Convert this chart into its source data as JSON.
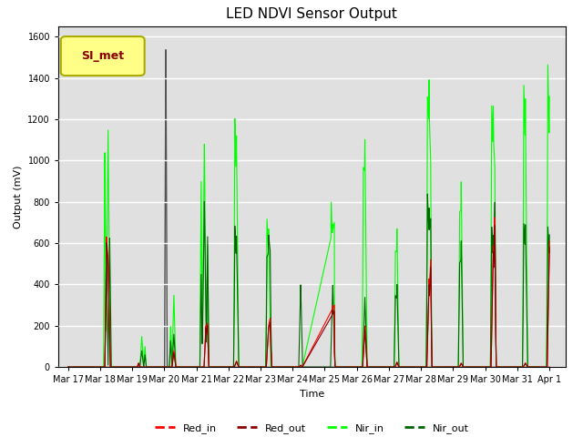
{
  "title": "LED NDVI Sensor Output",
  "xlabel": "Time",
  "ylabel": "Output (mV)",
  "ylim": [
    0,
    1650
  ],
  "yticks": [
    0,
    200,
    400,
    600,
    800,
    1000,
    1200,
    1400,
    1600
  ],
  "legend_label": "SI_met",
  "bg_color": "#e0e0e0",
  "series": {
    "Red_in": {
      "color": "#ff0000",
      "lw": 0.8
    },
    "Red_out": {
      "color": "#8b0000",
      "lw": 0.8
    },
    "Nir_in": {
      "color": "#00ff00",
      "lw": 0.8
    },
    "Nir_out": {
      "color": "#006400",
      "lw": 0.8
    }
  },
  "xtick_labels": [
    "Mar 17",
    "Mar 18",
    "Mar 19",
    "Mar 20",
    "Mar 21",
    "Mar 22",
    "Mar 23",
    "Mar 24",
    "Mar 25",
    "Mar 26",
    "Mar 27",
    "Mar 28",
    "Mar 29",
    "Mar 30",
    "Mar 31",
    "Apr 1"
  ],
  "figsize": [
    6.4,
    4.8
  ],
  "dpi": 100
}
